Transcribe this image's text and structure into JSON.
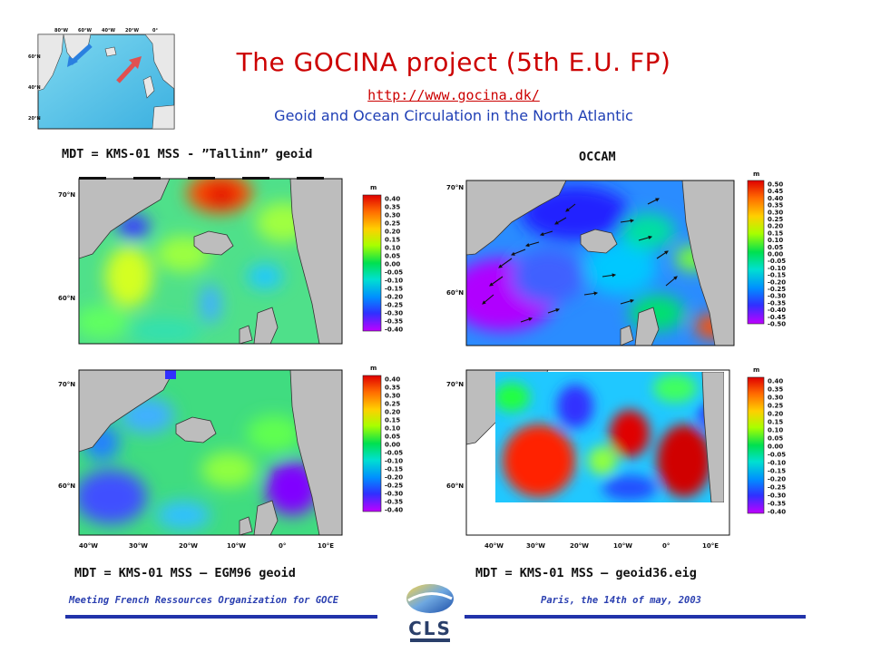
{
  "header": {
    "title": "The GOCINA project (5th E.U. FP)",
    "url": "http://www.gocina.dk/",
    "subtitle": "Geoid and Ocean Circulation in the North Atlantic"
  },
  "inset_map": {
    "lat_labels": [
      "60°N",
      "40°N",
      "20°N"
    ],
    "lon_labels": [
      "80°W",
      "60°W",
      "40°W",
      "20°W",
      "0°"
    ]
  },
  "panels": {
    "top_left": {
      "caption": "MDT = KMS-01 MSS - ”Tallinn” geoid"
    },
    "top_right": {
      "caption": "OCCAM"
    },
    "bottom_left": {
      "caption": "MDT = KMS-01 MSS – EGM96 geoid"
    },
    "bottom_right": {
      "caption": "MDT = KMS-01 MSS – geoid36.eig"
    }
  },
  "axes": {
    "lat_labels": [
      "70°N",
      "60°N"
    ],
    "lon_labels": [
      "40°W",
      "30°W",
      "20°W",
      "10°W",
      "0°",
      "10°E"
    ]
  },
  "colorbars": {
    "unit": "m",
    "standard": [
      "0.40",
      "0.35",
      "0.30",
      "0.25",
      "0.20",
      "0.15",
      "0.10",
      "0.05",
      "0.00",
      "-0.05",
      "-0.10",
      "-0.15",
      "-0.20",
      "-0.25",
      "-0.30",
      "-0.35",
      "-0.40"
    ],
    "occam": [
      "0.50",
      "0.45",
      "0.40",
      "0.35",
      "0.30",
      "0.25",
      "0.20",
      "0.15",
      "0.10",
      "0.05",
      "0.00",
      "-0.05",
      "-0.10",
      "-0.15",
      "-0.20",
      "-0.25",
      "-0.30",
      "-0.35",
      "-0.40",
      "-0.45",
      "-0.50"
    ]
  },
  "footer": {
    "left": "Meeting French Ressources Organization for GOCE",
    "right": "Paris, the 14th of may, 2003",
    "logo_text": "CLS"
  },
  "colors": {
    "title": "#cc0000",
    "subtitle": "#1f3fb5",
    "rule": "#2233aa"
  }
}
